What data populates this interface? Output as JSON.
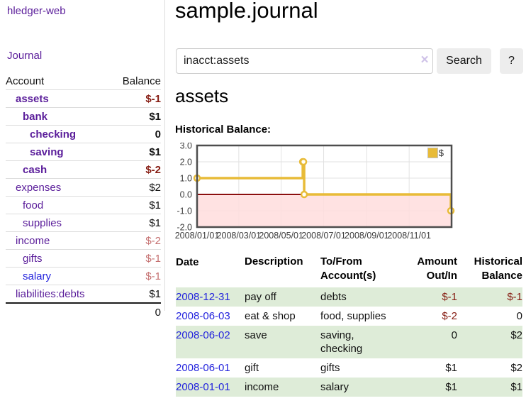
{
  "app": {
    "brand": "hledger-web"
  },
  "sidebar": {
    "journal_link": "Journal",
    "accounts": {
      "headers": {
        "account": "Account",
        "balance": "Balance"
      },
      "rows": [
        {
          "name": "assets",
          "balance": "$-1"
        },
        {
          "name": "bank",
          "balance": "$1"
        },
        {
          "name": "checking",
          "balance": "0"
        },
        {
          "name": "saving",
          "balance": "$1"
        },
        {
          "name": "cash",
          "balance": "$-2"
        },
        {
          "name": "expenses",
          "balance": "$2"
        },
        {
          "name": "food",
          "balance": "$1"
        },
        {
          "name": "supplies",
          "balance": "$1"
        },
        {
          "name": "income",
          "balance": "$-2"
        },
        {
          "name": "gifts",
          "balance": "$-1"
        },
        {
          "name": "salary",
          "balance": "$-1"
        },
        {
          "name": "liabilities:debts",
          "balance": "$1"
        }
      ],
      "total": "0"
    }
  },
  "header": {
    "title": "sample.journal"
  },
  "search": {
    "value": "inacct:assets",
    "clear_icon": "×",
    "button_label": "Search",
    "help_label": "?"
  },
  "account_view": {
    "heading": "assets",
    "chart_title": "Historical Balance:"
  },
  "chart_data": {
    "type": "line",
    "step": true,
    "title": "Historical Balance",
    "ylim": [
      -2,
      3
    ],
    "x_range": [
      "2008-01-01",
      "2009-01-01"
    ],
    "y_ticks": [
      "3.0",
      "2.0",
      "1.0",
      "0.0",
      "-1.0",
      "-2.0"
    ],
    "x_ticks": [
      {
        "label": "2008/01/01",
        "date": "2008-01-01"
      },
      {
        "label": "2008/03/01",
        "date": "2008-03-01"
      },
      {
        "label": "2008/05/01",
        "date": "2008-05-01"
      },
      {
        "label": "2008/07/01",
        "date": "2008-07-01"
      },
      {
        "label": "2008/09/01",
        "date": "2008-09-01"
      },
      {
        "label": "2008/11/01",
        "date": "2008-11-01"
      }
    ],
    "series": [
      {
        "name": "$",
        "color": "#e8bb38",
        "points": [
          {
            "date": "2008-01-01",
            "value": 1
          },
          {
            "date": "2008-06-01",
            "value": 2
          },
          {
            "date": "2008-06-02",
            "value": 2
          },
          {
            "date": "2008-06-03",
            "value": 0
          },
          {
            "date": "2008-12-31",
            "value": -1
          }
        ]
      }
    ],
    "legend": {
      "label": "$",
      "position": "top-right"
    },
    "grid": true,
    "negative_region_fill": "#ffdddd",
    "zero_line_color": "#8b0f0f",
    "border_color": "#4d4d4d"
  },
  "transactions": {
    "headers": {
      "date": "Date",
      "sort_icon": "∧",
      "description": "Description",
      "account": "To/From Account(s)",
      "amount": "Amount Out/In",
      "balance": "Historical Balance"
    },
    "rows": [
      {
        "date": "2008-12-31",
        "description": "pay off",
        "account": "debts",
        "amount": "$-1",
        "balance": "$-1"
      },
      {
        "date": "2008-06-03",
        "description": "eat & shop",
        "account": "food, supplies",
        "amount": "$-2",
        "balance": "0"
      },
      {
        "date": "2008-06-02",
        "description": "save",
        "account": "saving, checking",
        "amount": "0",
        "balance": "$2"
      },
      {
        "date": "2008-06-01",
        "description": "gift",
        "account": "gifts",
        "amount": "$1",
        "balance": "$2"
      },
      {
        "date": "2008-01-01",
        "description": "income",
        "account": "salary",
        "amount": "$1",
        "balance": "$1"
      }
    ]
  }
}
